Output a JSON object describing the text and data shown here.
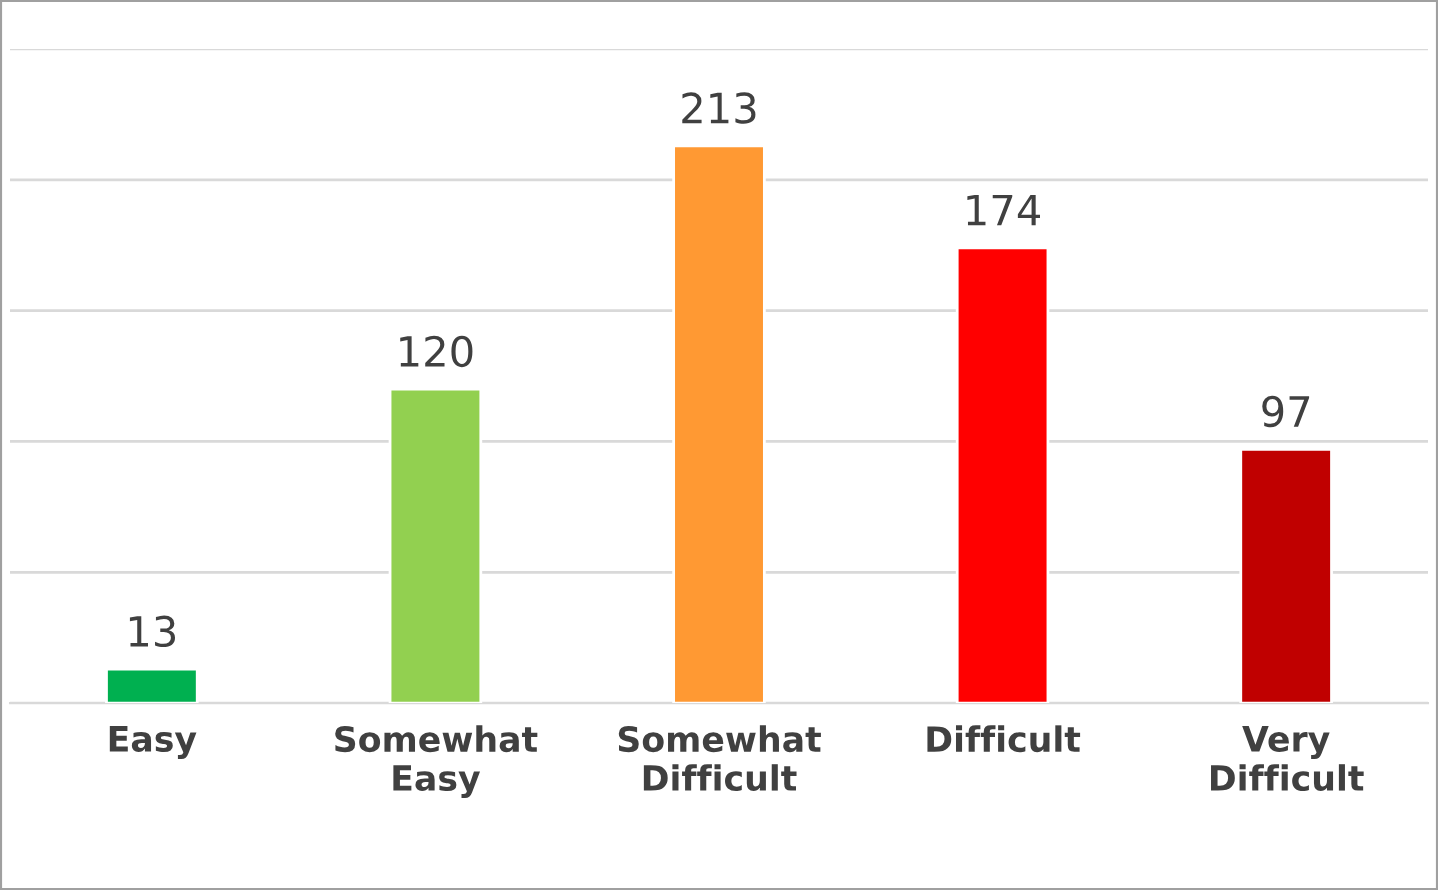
{
  "chart_data": {
    "type": "bar",
    "categories": [
      "Easy",
      "Somewhat\nEasy",
      "Somewhat\nDifficult",
      "Difficult",
      "Very\nDifficult"
    ],
    "values": [
      13,
      120,
      213,
      174,
      97
    ],
    "colors": [
      "#00b050",
      "#92d050",
      "#ff9933",
      "#ff0000",
      "#c00000"
    ],
    "ylim": [
      0,
      250
    ],
    "yticks": [
      {
        "value": 0,
        "label": null
      },
      {
        "value": 50,
        "label": null
      },
      {
        "value": 100,
        "label": null
      },
      {
        "value": 150,
        "label": null
      },
      {
        "value": 200,
        "label": null
      },
      {
        "value": 250,
        "label": null
      }
    ],
    "grid": "y",
    "tick_labels": "x",
    "data_labels": true
  }
}
